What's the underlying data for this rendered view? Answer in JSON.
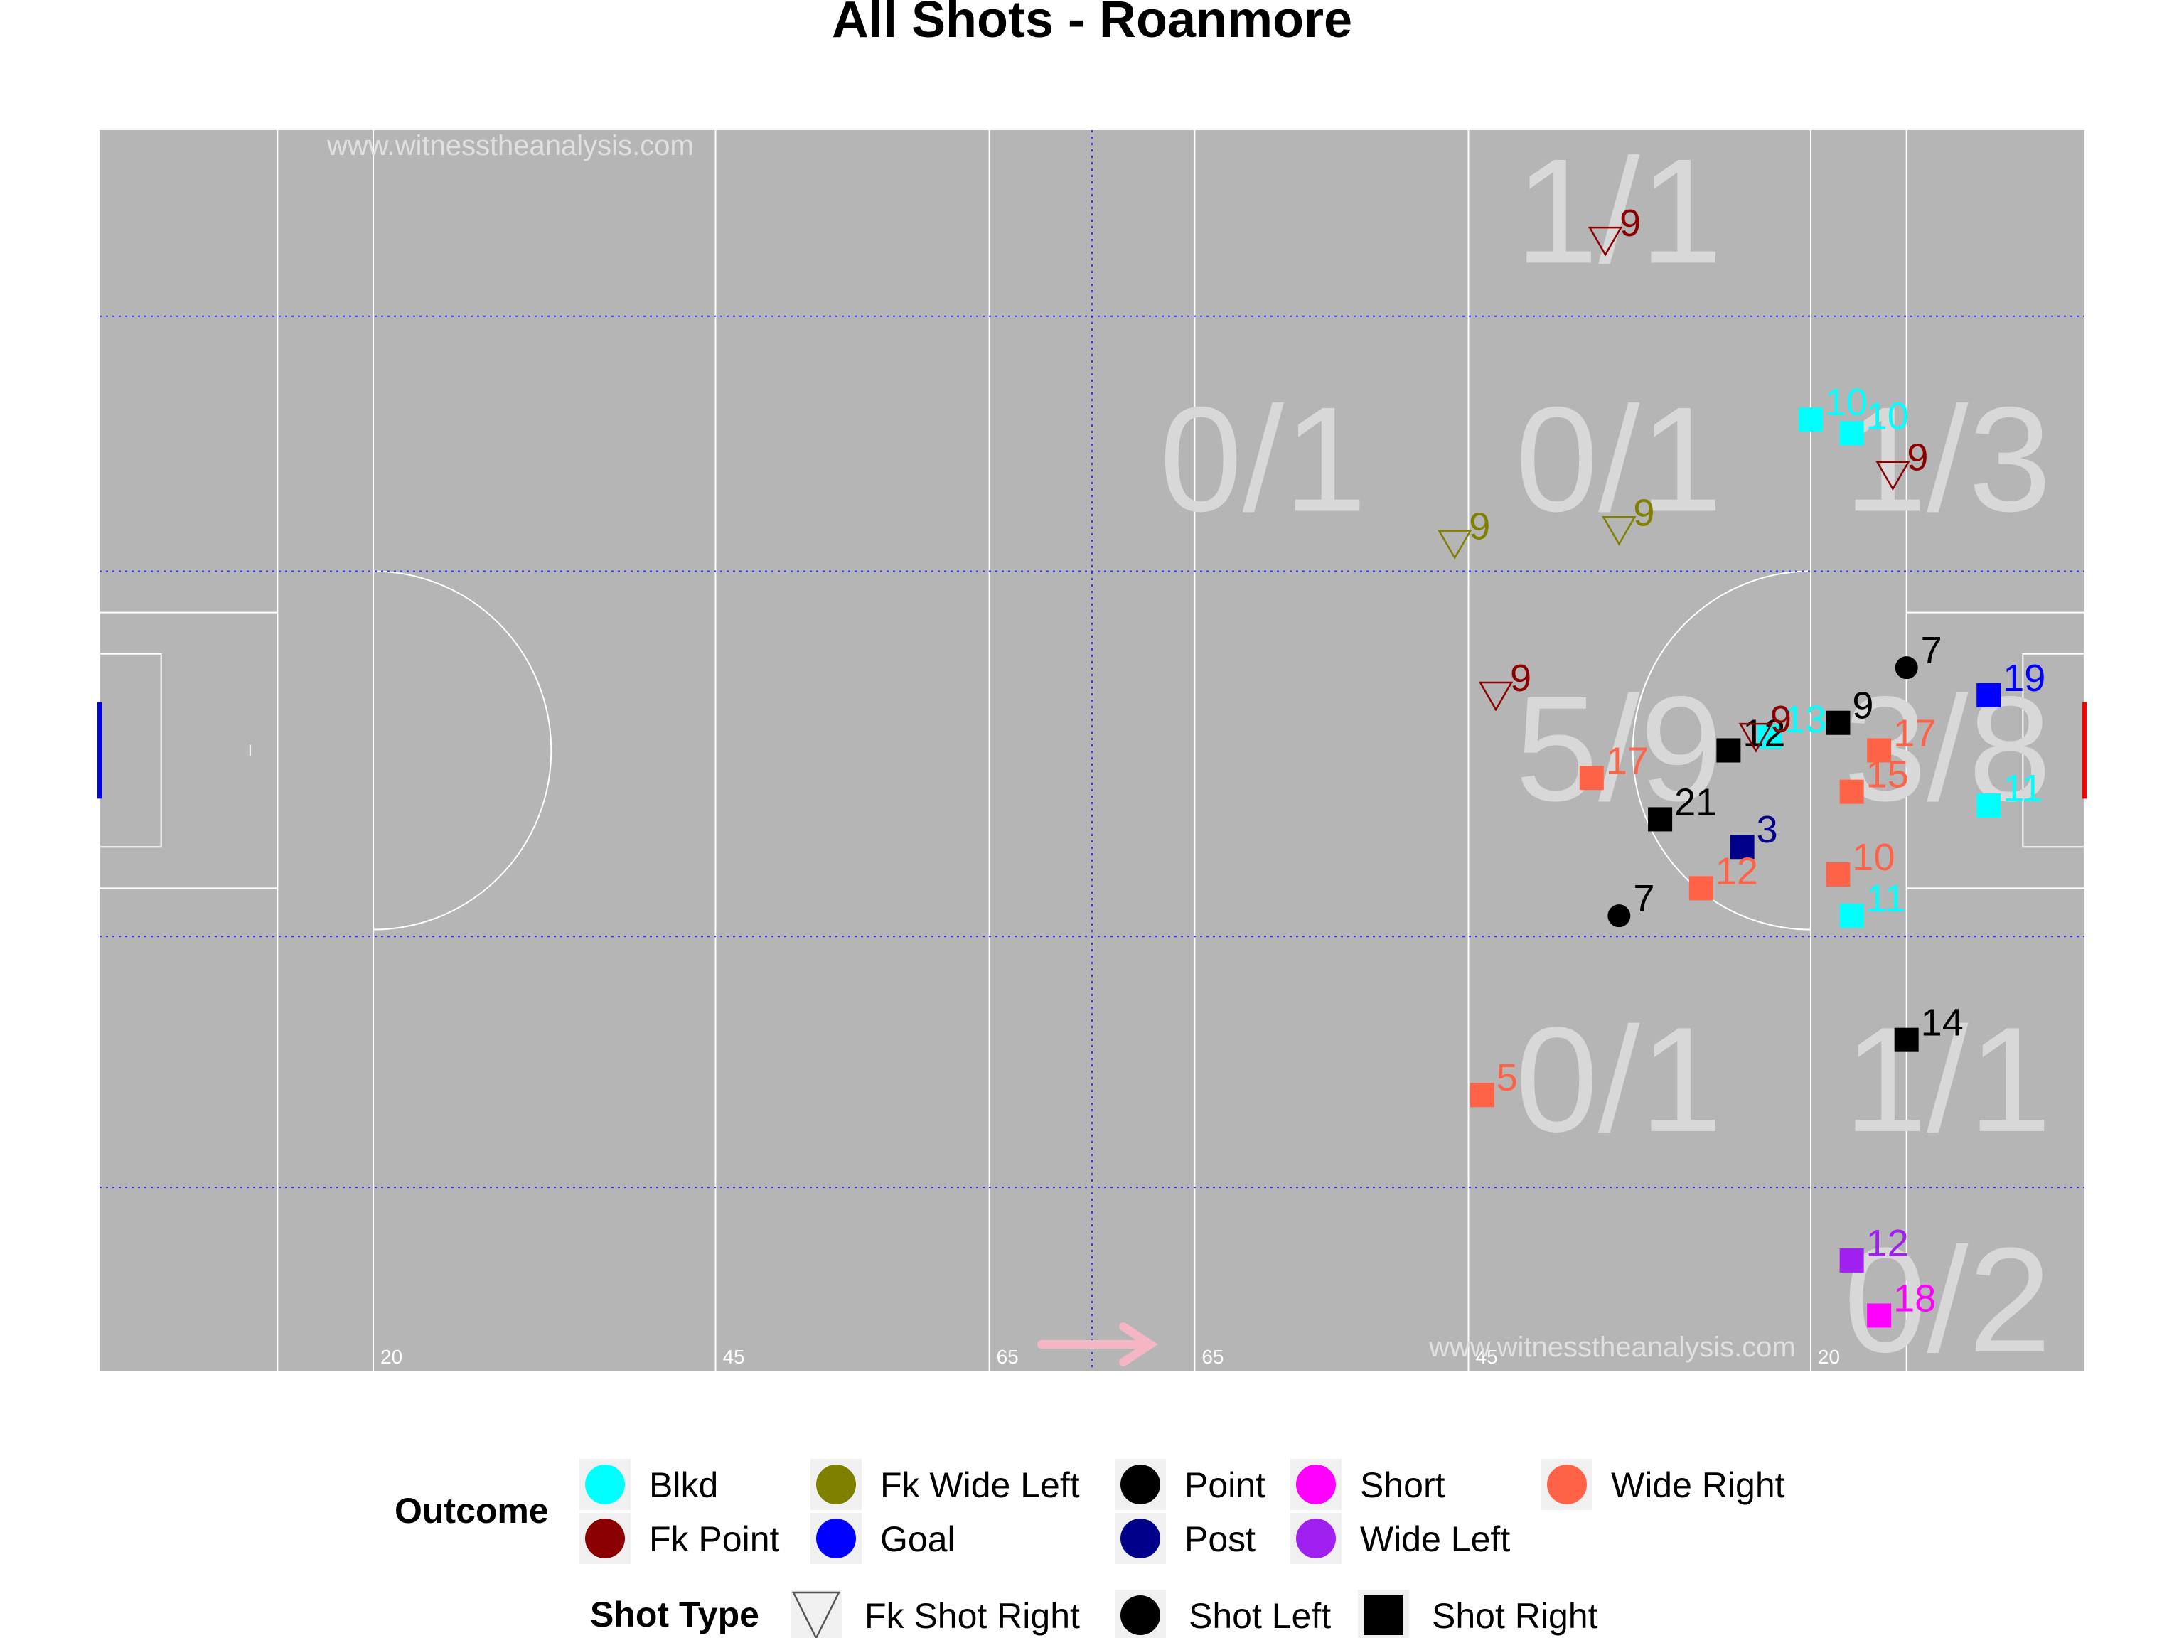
{
  "chart_data": {
    "type": "scatter",
    "title": "All Shots - Roanmore",
    "watermark": "www.witnesstheanalysis.com",
    "xlim": [
      0,
      145
    ],
    "ylim": [
      0,
      90
    ],
    "pitch_line_labels": [
      "20",
      "45",
      "65",
      "65",
      "45",
      "20"
    ],
    "zone_labels": [
      {
        "text": "1/1",
        "x": 111,
        "y": 84
      },
      {
        "text": "0/1",
        "x": 85,
        "y": 66
      },
      {
        "text": "0/1",
        "x": 111,
        "y": 66
      },
      {
        "text": "1/3",
        "x": 135,
        "y": 66
      },
      {
        "text": "5/9",
        "x": 111,
        "y": 45
      },
      {
        "text": "3/8",
        "x": 135,
        "y": 45
      },
      {
        "text": "0/1",
        "x": 111,
        "y": 21
      },
      {
        "text": "1/1",
        "x": 135,
        "y": 21
      },
      {
        "text": "0/2",
        "x": 135,
        "y": 5
      }
    ],
    "outcome_colors": {
      "Blkd": "#00FFFF",
      "Fk Point": "#8B0000",
      "Fk Wide Left": "#808000",
      "Goal": "#0000FF",
      "Point": "#000000",
      "Post": "#00008B",
      "Short": "#FF00FF",
      "Wide Left": "#A020F0",
      "Wide Right": "#FF6347"
    },
    "legend": {
      "outcome_title": "Outcome",
      "outcomes": [
        "Blkd",
        "Fk Point",
        "Fk Wide Left",
        "Goal",
        "Point",
        "Post",
        "Short",
        "Wide Left",
        "Wide Right"
      ],
      "shot_type_title": "Shot Type",
      "shot_types": [
        "Fk Shot Right",
        "Shot Left",
        "Shot Right"
      ]
    },
    "shots": [
      {
        "x": 110,
        "y": 82,
        "player": "9",
        "outcome": "Fk Point",
        "type": "Fk Shot Right"
      },
      {
        "x": 125,
        "y": 69,
        "player": "10",
        "outcome": "Blkd",
        "type": "Shot Right"
      },
      {
        "x": 128,
        "y": 68,
        "player": "10",
        "outcome": "Blkd",
        "type": "Shot Right"
      },
      {
        "x": 131,
        "y": 65,
        "player": "9",
        "outcome": "Fk Point",
        "type": "Fk Shot Right"
      },
      {
        "x": 99,
        "y": 60,
        "player": "9",
        "outcome": "Fk Wide Left",
        "type": "Fk Shot Right"
      },
      {
        "x": 111,
        "y": 61,
        "player": "9",
        "outcome": "Fk Wide Left",
        "type": "Fk Shot Right"
      },
      {
        "x": 132,
        "y": 51,
        "player": "7",
        "outcome": "Point",
        "type": "Shot Left"
      },
      {
        "x": 138,
        "y": 49,
        "player": "19",
        "outcome": "Goal",
        "type": "Shot Right"
      },
      {
        "x": 102,
        "y": 49,
        "player": "9",
        "outcome": "Fk Point",
        "type": "Fk Shot Right"
      },
      {
        "x": 122,
        "y": 46,
        "player": "13",
        "outcome": "Blkd",
        "type": "Shot Right"
      },
      {
        "x": 127,
        "y": 47,
        "player": "9",
        "outcome": "Point",
        "type": "Shot Right"
      },
      {
        "x": 119,
        "y": 45,
        "player": "12",
        "outcome": "Point",
        "type": "Shot Right"
      },
      {
        "x": 121,
        "y": 46,
        "player": "9",
        "outcome": "Fk Point",
        "type": "Fk Shot Right"
      },
      {
        "x": 130,
        "y": 45,
        "player": "17",
        "outcome": "Wide Right",
        "type": "Shot Right"
      },
      {
        "x": 109,
        "y": 43,
        "player": "17",
        "outcome": "Wide Right",
        "type": "Shot Right"
      },
      {
        "x": 128,
        "y": 42,
        "player": "15",
        "outcome": "Wide Right",
        "type": "Shot Right"
      },
      {
        "x": 138,
        "y": 41,
        "player": "11",
        "outcome": "Blkd",
        "type": "Shot Right"
      },
      {
        "x": 114,
        "y": 40,
        "player": "21",
        "outcome": "Point",
        "type": "Shot Right"
      },
      {
        "x": 120,
        "y": 38,
        "player": "3",
        "outcome": "Post",
        "type": "Shot Right"
      },
      {
        "x": 127,
        "y": 36,
        "player": "10",
        "outcome": "Wide Right",
        "type": "Shot Right"
      },
      {
        "x": 117,
        "y": 35,
        "player": "12",
        "outcome": "Wide Right",
        "type": "Shot Right"
      },
      {
        "x": 128,
        "y": 33,
        "player": "11",
        "outcome": "Blkd",
        "type": "Shot Right"
      },
      {
        "x": 111,
        "y": 33,
        "player": "7",
        "outcome": "Point",
        "type": "Shot Left"
      },
      {
        "x": 132,
        "y": 24,
        "player": "14",
        "outcome": "Point",
        "type": "Shot Right"
      },
      {
        "x": 101,
        "y": 20,
        "player": "5",
        "outcome": "Wide Right",
        "type": "Shot Right"
      },
      {
        "x": 128,
        "y": 8,
        "player": "12",
        "outcome": "Wide Left",
        "type": "Shot Right"
      },
      {
        "x": 130,
        "y": 4,
        "player": "18",
        "outcome": "Short",
        "type": "Shot Right"
      }
    ]
  }
}
